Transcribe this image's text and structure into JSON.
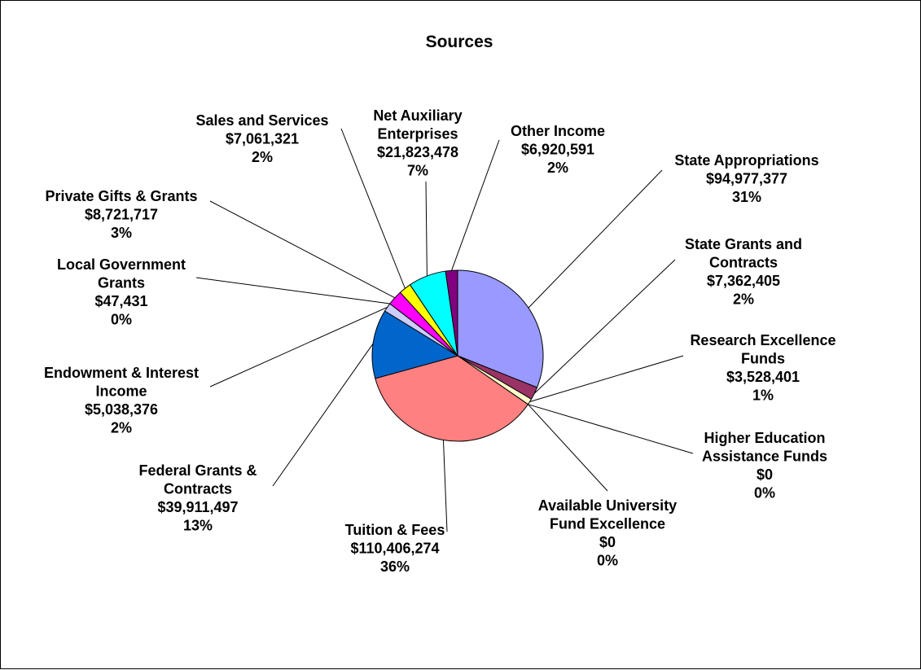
{
  "chart_data": {
    "type": "pie",
    "title": "Sources",
    "slices": [
      {
        "name": "State Appropriations",
        "amount": "$94,977,377",
        "percent": "31%",
        "value": 94977377,
        "color": "#9999ff"
      },
      {
        "name": "State Grants and Contracts",
        "amount": "$7,362,405",
        "percent": "2%",
        "value": 7362405,
        "color": "#993366"
      },
      {
        "name": "Research Excellence Funds",
        "amount": "$3,528,401",
        "percent": "1%",
        "value": 3528401,
        "color": "#ffffcc"
      },
      {
        "name": "Higher Education Assistance Funds",
        "amount": "$0",
        "percent": "0%",
        "value": 0,
        "color": "#ccffff"
      },
      {
        "name": "Available University Fund Excellence",
        "amount": "$0",
        "percent": "0%",
        "value": 0,
        "color": "#660066"
      },
      {
        "name": "Tuition & Fees",
        "amount": "$110,406,274",
        "percent": "36%",
        "value": 110406274,
        "color": "#ff8080"
      },
      {
        "name": "Federal Grants & Contracts",
        "amount": "$39,911,497",
        "percent": "13%",
        "value": 39911497,
        "color": "#0066cc"
      },
      {
        "name": "Endowment & Interest Income",
        "amount": "$5,038,376",
        "percent": "2%",
        "value": 5038376,
        "color": "#ccccff"
      },
      {
        "name": "Local Government Grants",
        "amount": "$47,431",
        "percent": "0%",
        "value": 47431,
        "color": "#000080"
      },
      {
        "name": "Private Gifts & Grants",
        "amount": "$8,721,717",
        "percent": "3%",
        "value": 8721717,
        "color": "#ff00ff"
      },
      {
        "name": "Sales and Services",
        "amount": "$7,061,321",
        "percent": "2%",
        "value": 7061321,
        "color": "#ffff00"
      },
      {
        "name": "Net Auxiliary Enterprises",
        "amount": "$21,823,478",
        "percent": "7%",
        "value": 21823478,
        "color": "#00ffff"
      },
      {
        "name": "Other Income",
        "amount": "$6,920,591",
        "percent": "2%",
        "value": 6920591,
        "color": "#800080"
      }
    ],
    "label_lines": [
      [
        "State Appropriations"
      ],
      [
        "State Grants and",
        "Contracts"
      ],
      [
        "Research Excellence",
        "Funds"
      ],
      [
        "Higher Education",
        "Assistance Funds"
      ],
      [
        "Available University",
        "Fund Excellence"
      ],
      [
        "Tuition & Fees"
      ],
      [
        "Federal Grants &",
        "Contracts"
      ],
      [
        "Endowment & Interest",
        "Income"
      ],
      [
        "Local Government",
        "Grants"
      ],
      [
        "Private Gifts & Grants"
      ],
      [
        "Sales and Services"
      ],
      [
        "Net Auxiliary",
        "Enterprises"
      ],
      [
        "Other Income"
      ]
    ]
  }
}
